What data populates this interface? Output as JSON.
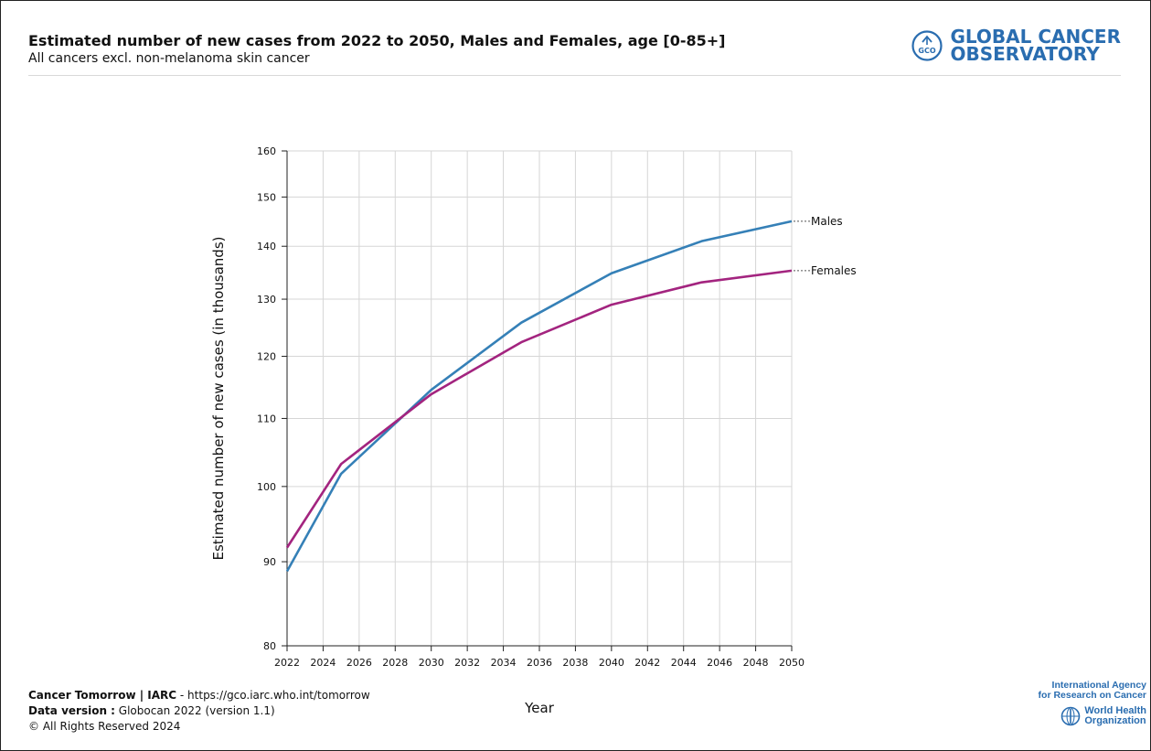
{
  "header": {
    "title": "Estimated number of new cases from 2022 to 2050, Males and Females, age [0-85+]",
    "subtitle": "All cancers excl. non-melanoma skin cancer",
    "logo_line1": "GLOBAL CANCER",
    "logo_line2": "OBSERVATORY",
    "logo_badge": "GCO"
  },
  "footer": {
    "line1_bold": "Cancer Tomorrow | IARC",
    "line1_rest": " - https://gco.iarc.who.int/tomorrow",
    "line2_bold": "Data version :",
    "line2_rest": " Globocan 2022 (version 1.1)",
    "line3": "© All Rights Reserved 2024",
    "iarc_line1": "International Agency",
    "iarc_line2": "for Research on Cancer",
    "who_line1": "World Health",
    "who_line2": "Organization"
  },
  "colors": {
    "males": "#3580b7",
    "females": "#a3247f",
    "logo": "#2a6db0"
  },
  "chart_data": {
    "type": "line",
    "xlabel": "Year",
    "ylabel": "Estimated number of new cases (in thousands)",
    "xlim": [
      2022,
      2050
    ],
    "ylim": [
      80,
      160
    ],
    "yscale": "log",
    "x_ticks": [
      2022,
      2024,
      2026,
      2028,
      2030,
      2032,
      2034,
      2036,
      2038,
      2040,
      2042,
      2044,
      2046,
      2048,
      2050
    ],
    "y_ticks": [
      80,
      90,
      100,
      110,
      120,
      130,
      140,
      150,
      160
    ],
    "grid": true,
    "legend": "inline-right",
    "series": [
      {
        "name": "Males",
        "x": [
          2022,
          2025,
          2030,
          2035,
          2040,
          2045,
          2050
        ],
        "values": [
          88.8,
          101.8,
          114.5,
          125.8,
          134.8,
          141.0,
          145.0
        ]
      },
      {
        "name": "Females",
        "x": [
          2022,
          2025,
          2030,
          2035,
          2040,
          2045,
          2050
        ],
        "values": [
          91.8,
          103.2,
          113.8,
          122.4,
          129.0,
          133.1,
          135.3
        ]
      }
    ]
  }
}
